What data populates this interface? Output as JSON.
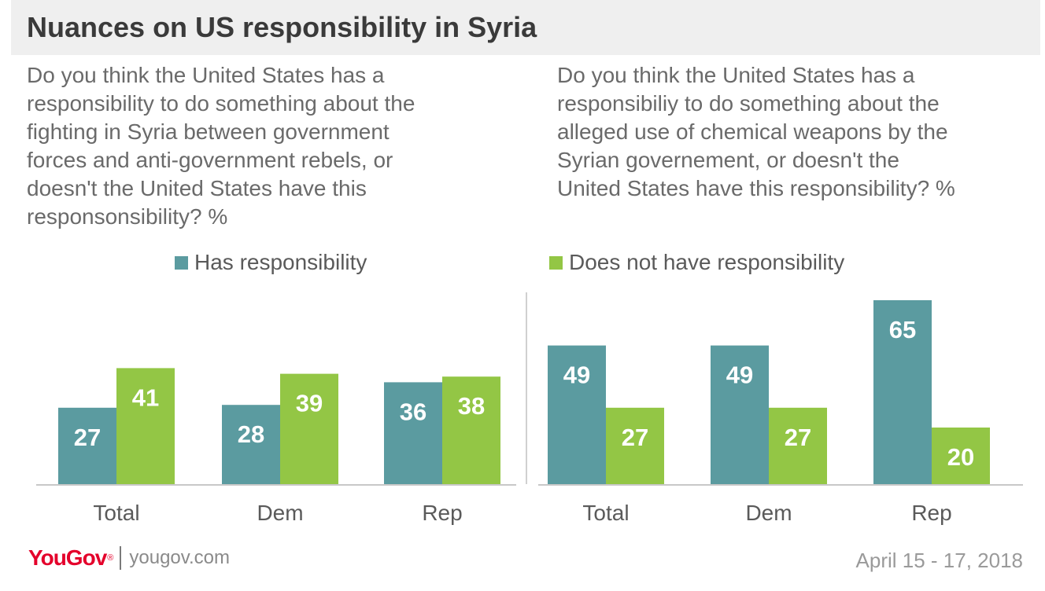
{
  "title": "Nuances on US responsibility in Syria",
  "questions": {
    "left": "Do you think the United States has a\nresponsibility to do something about the\nfighting in Syria between government\nforces and anti-government rebels, or\ndoesn't the United States have this\nresponsonsibility? %",
    "right": "Do you think the United States has a\nresponsibiliy to do something about the\nalleged use of chemical weapons by the\nSyrian governement, or doesn't the\nUnited States have this responsibility? %"
  },
  "legend": {
    "has": "Has responsibility",
    "not": "Does not have responsibility"
  },
  "colors": {
    "has": "#5b9ba0",
    "not": "#93c645",
    "axis": "#c8c8c8",
    "divider": "#d0d0d0"
  },
  "chart_data": [
    {
      "type": "bar",
      "categories": [
        "Total",
        "Dem",
        "Rep"
      ],
      "series": [
        {
          "name": "Has responsibility",
          "values": [
            27,
            28,
            36
          ]
        },
        {
          "name": "Does not have responsibility",
          "values": [
            41,
            39,
            38
          ]
        }
      ],
      "ylim": [
        0,
        70
      ]
    },
    {
      "type": "bar",
      "categories": [
        "Total",
        "Dem",
        "Rep"
      ],
      "series": [
        {
          "name": "Has responsibility",
          "values": [
            49,
            49,
            65
          ]
        },
        {
          "name": "Does not have responsibility",
          "values": [
            27,
            27,
            20
          ]
        }
      ],
      "ylim": [
        0,
        70
      ]
    }
  ],
  "footer": {
    "brand": "YouGov",
    "brand_mark": "®",
    "site": "yougov.com",
    "date": "April 15 - 17, 2018"
  }
}
